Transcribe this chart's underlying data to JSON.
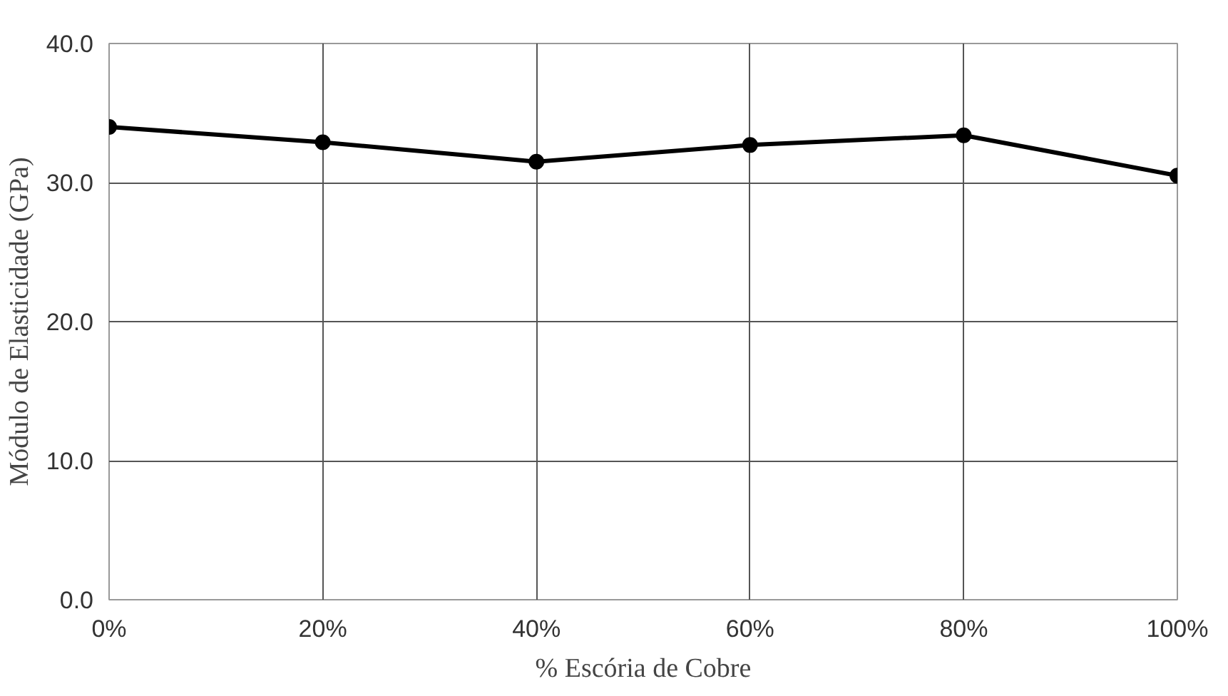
{
  "chart_data": {
    "type": "line",
    "xlabel": "% Escória de Cobre",
    "ylabel": "Módulo de Elasticidade (GPa)",
    "x": [
      0,
      20,
      40,
      60,
      80,
      100
    ],
    "series": [
      {
        "color": "#000000",
        "values": [
          34.0,
          32.9,
          31.5,
          32.7,
          33.4,
          30.5
        ]
      }
    ],
    "xlim": [
      0,
      100
    ],
    "xticks": [
      {
        "value": 0,
        "label": "0%"
      },
      {
        "value": 20,
        "label": "20%"
      },
      {
        "value": 40,
        "label": "40%"
      },
      {
        "value": 60,
        "label": "60%"
      },
      {
        "value": 80,
        "label": "80%"
      },
      {
        "value": 100,
        "label": "100%"
      }
    ],
    "ylim": [
      0,
      40
    ],
    "yticks": [
      {
        "value": 0,
        "label": "0.0"
      },
      {
        "value": 10,
        "label": "10.0"
      },
      {
        "value": 20,
        "label": "20.0"
      },
      {
        "value": 30,
        "label": "30.0"
      },
      {
        "value": 40,
        "label": "40.0"
      }
    ],
    "grid": true,
    "marker": "circle",
    "line_style": "solid"
  }
}
